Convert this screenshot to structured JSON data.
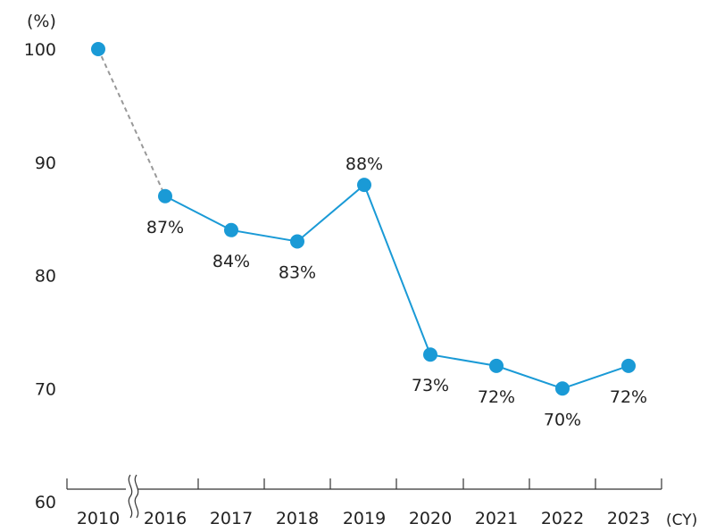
{
  "chart_data": {
    "type": "line",
    "y_unit_label": "(%)",
    "x_unit_label": "(CY)",
    "ylim": [
      60,
      100
    ],
    "y_ticks": [
      "60",
      "70",
      "80",
      "90",
      "100"
    ],
    "categories": [
      "2010",
      "2016",
      "2017",
      "2018",
      "2019",
      "2020",
      "2021",
      "2022",
      "2023"
    ],
    "values": [
      100,
      87,
      84,
      83,
      88,
      73,
      72,
      70,
      72
    ],
    "data_labels": [
      "",
      "87%",
      "84%",
      "83%",
      "88%",
      "73%",
      "72%",
      "70%",
      "72%"
    ],
    "axis_break_after": "2010",
    "dashed_segment": [
      "2010",
      "2016"
    ],
    "grid": false,
    "colors": {
      "line": "#1a9ad6",
      "marker": "#1a9ad6",
      "dashed": "#999999",
      "axis": "#333333"
    }
  }
}
